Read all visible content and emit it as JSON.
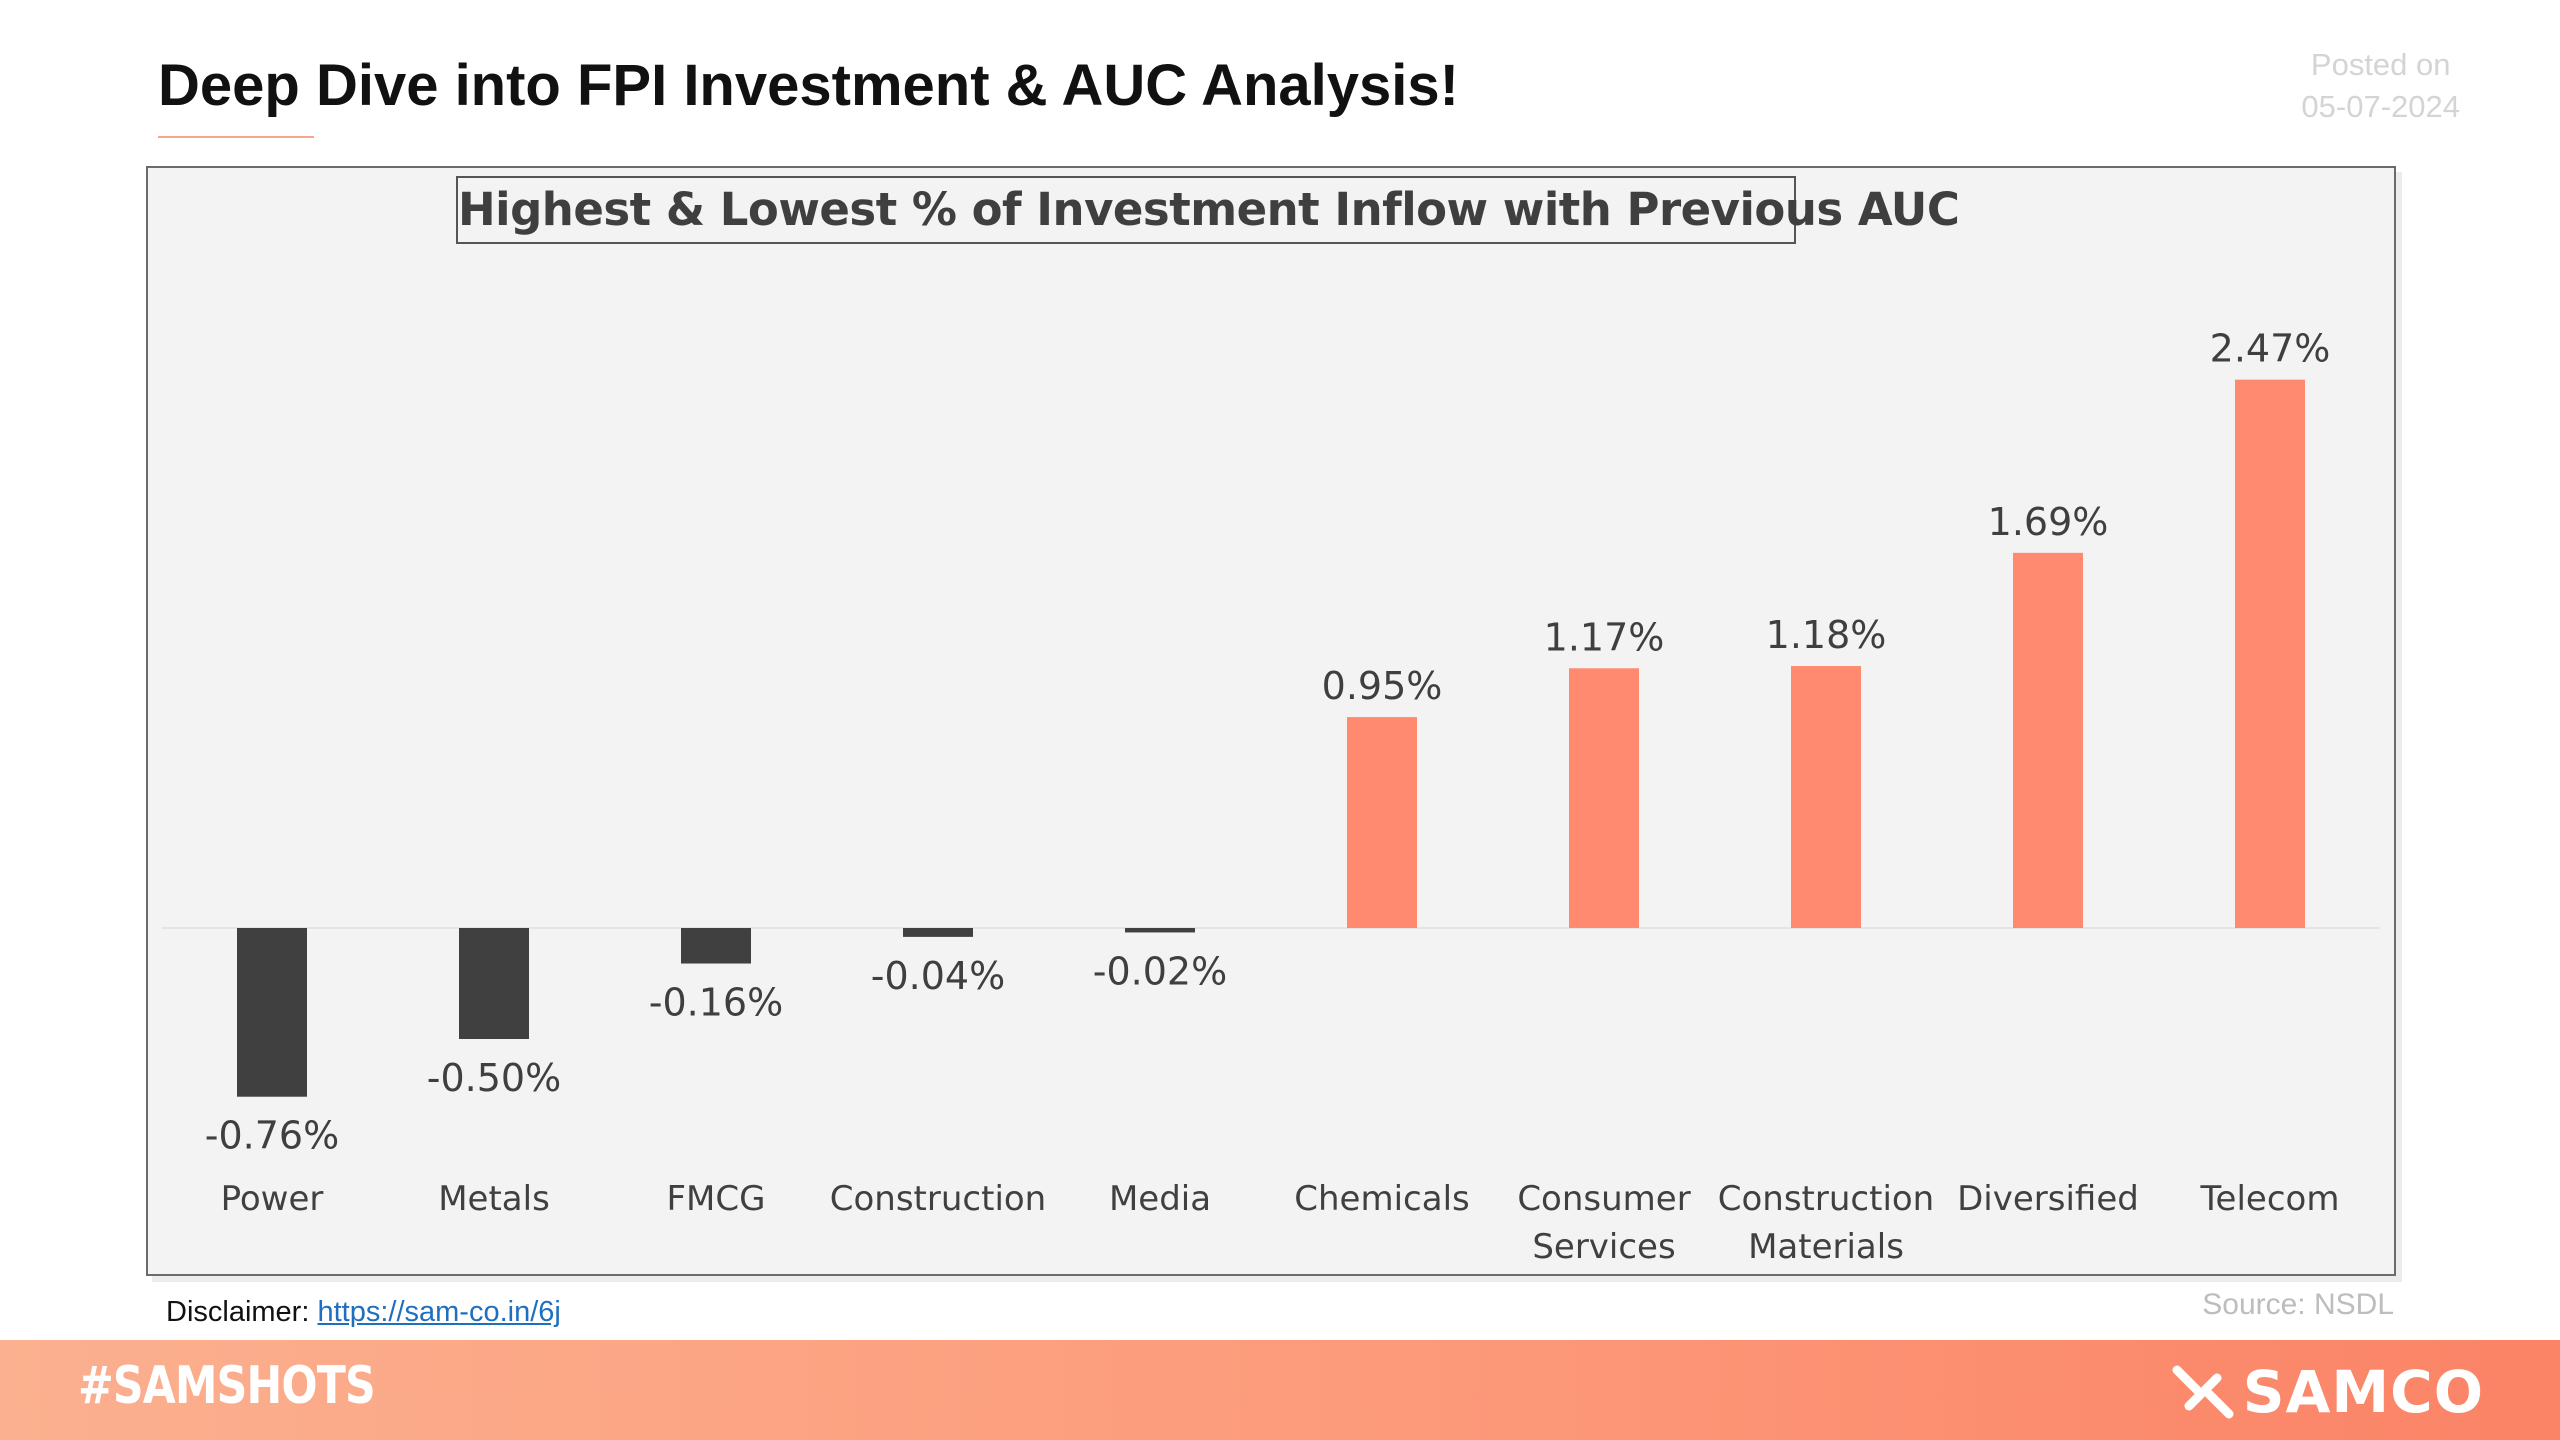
{
  "header": {
    "title": "Deep Dive into FPI Investment & AUC Analysis!",
    "posted_label": "Posted on",
    "posted_date": "05-07-2024"
  },
  "chart_data": {
    "type": "bar",
    "title": "Highest & Lowest % of Investment Inflow with Previous AUC",
    "categories": [
      "Power",
      "Metals",
      "FMCG",
      "Construction",
      "Media",
      "Chemicals",
      "Consumer Services",
      "Construction Materials",
      "Diversified",
      "Telecom"
    ],
    "category_lines": [
      [
        "Power"
      ],
      [
        "Metals"
      ],
      [
        "FMCG"
      ],
      [
        "Construction"
      ],
      [
        "Media"
      ],
      [
        "Chemicals"
      ],
      [
        "Consumer",
        "Services"
      ],
      [
        "Construction",
        "Materials"
      ],
      [
        "Diversified"
      ],
      [
        "Telecom"
      ]
    ],
    "values": [
      -0.76,
      -0.5,
      -0.16,
      -0.04,
      -0.02,
      0.95,
      1.17,
      1.18,
      1.69,
      2.47
    ],
    "data_labels": [
      "-0.76%",
      "-0.50%",
      "-0.16%",
      "-0.04%",
      "-0.02%",
      "0.95%",
      "1.17%",
      "1.18%",
      "1.69%",
      "2.47%"
    ],
    "unit": "%",
    "xlabel": "",
    "ylabel": "",
    "ylim": [
      -0.76,
      2.47
    ],
    "grid": false,
    "legend": "none",
    "colors": {
      "positive": "#ff8a70",
      "negative": "#404040"
    }
  },
  "footer": {
    "disclaimer_label": "Disclaimer:",
    "disclaimer_link": "https://sam-co.in/6j",
    "source": "Source: NSDL",
    "hashtag": "#SAMSHOTS",
    "brand": "SAMCO",
    "brand_icon": "samco-logo-icon"
  }
}
